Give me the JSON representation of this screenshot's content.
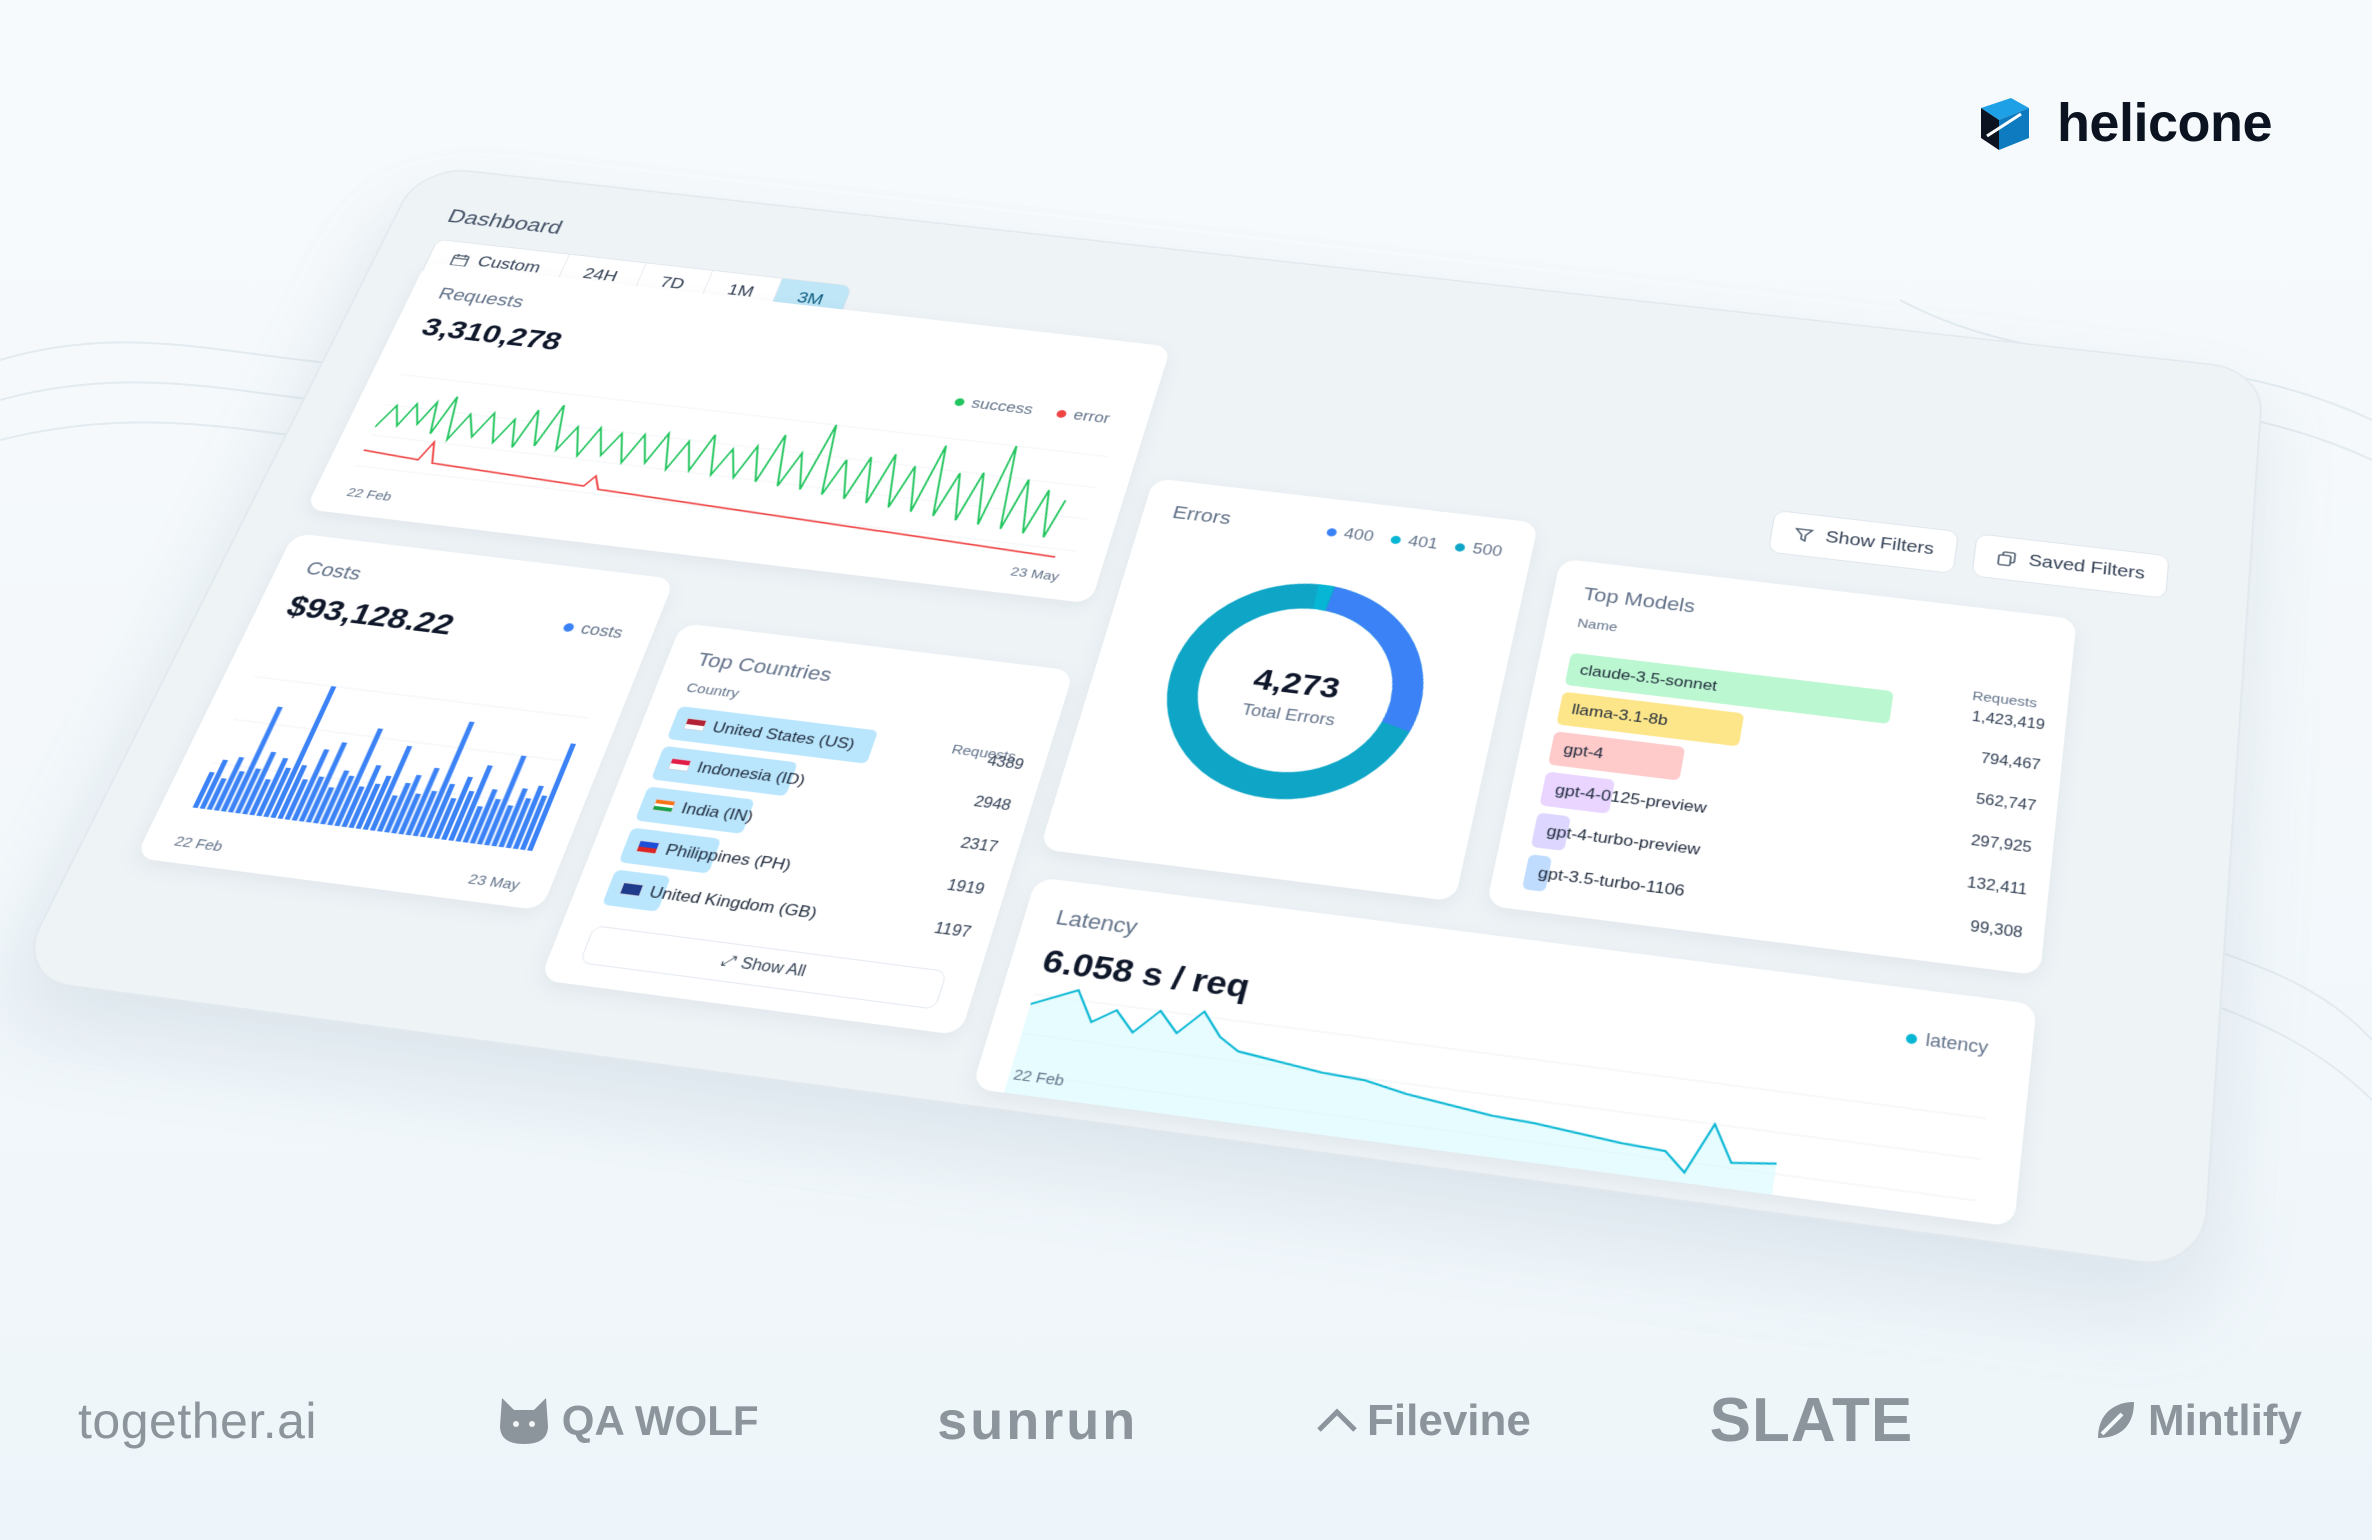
{
  "brand": {
    "name": "helicone",
    "logo_icon": "helicone-cube-icon"
  },
  "dashboard": {
    "title": "Dashboard",
    "range": {
      "custom_label": "Custom",
      "options": [
        "24H",
        "7D",
        "1M",
        "3M"
      ],
      "selected": "3M",
      "icon": "calendar-icon"
    },
    "filters": {
      "show": "Show Filters",
      "saved": "Saved Filters"
    }
  },
  "requests": {
    "title": "Requests",
    "value": "3,310,278",
    "legend_success": "success",
    "legend_error": "error",
    "start_label": "22 Feb",
    "end_label": "23 May",
    "colors": {
      "success": "#22c55e",
      "error": "#ef4444"
    }
  },
  "errors": {
    "title": "Errors",
    "total": "4,273",
    "total_label": "Total Errors",
    "legend": [
      "400",
      "401",
      "500"
    ],
    "colors": {
      "400": "#3b82f6",
      "401": "#06b6d4",
      "500": "#0ea5c6"
    }
  },
  "top_models": {
    "title": "Top Models",
    "col_name": "Name",
    "col_requests": "Requests",
    "rows": [
      {
        "name": "claude-3.5-sonnet",
        "value": "1,423,419",
        "color": "#bbf7d0"
      },
      {
        "name": "llama-3.1-8b",
        "value": "794,467",
        "color": "#fde68a"
      },
      {
        "name": "gpt-4",
        "value": "562,747",
        "color": "#fecaca"
      },
      {
        "name": "gpt-4-0125-preview",
        "value": "297,925",
        "color": "#e9d5ff"
      },
      {
        "name": "gpt-4-turbo-preview",
        "value": "132,411",
        "color": "#ddd6fe"
      },
      {
        "name": "gpt-3.5-turbo-1106",
        "value": "99,308",
        "color": "#bfdbfe"
      }
    ]
  },
  "costs": {
    "title": "Costs",
    "value": "$93,128.22",
    "legend": "costs",
    "start_label": "22 Feb",
    "end_label": "23 May",
    "color": "#3b82f6"
  },
  "top_countries": {
    "title": "Top Countries",
    "col_name": "Country",
    "col_requests": "Requests",
    "rows": [
      {
        "name": "United States (US)",
        "value": "4389"
      },
      {
        "name": "Indonesia (ID)",
        "value": "2948"
      },
      {
        "name": "India (IN)",
        "value": "2317"
      },
      {
        "name": "Philippines (PH)",
        "value": "1919"
      },
      {
        "name": "United Kingdom (GB)",
        "value": "1197"
      }
    ],
    "show_all": "Show All",
    "bar_color": "#bae6fd"
  },
  "latency": {
    "title": "Latency",
    "value": "6.058 s / req",
    "legend": "latency",
    "start_label": "22 Feb",
    "color": "#06b6d4"
  },
  "logos": [
    "together.ai",
    "QA WOLF",
    "sunrun",
    "Filevine",
    "SLATE",
    "Mintlify"
  ]
}
